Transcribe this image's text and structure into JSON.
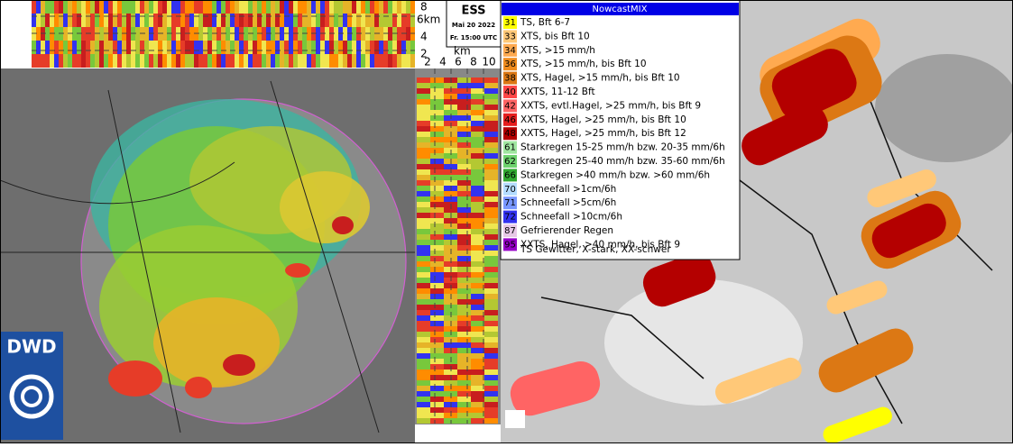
{
  "header": {
    "station": "ESS",
    "date": "Mai 20 2022",
    "time": "Fr. 15:00 UTC"
  },
  "height_axis": {
    "labels": [
      "8",
      "6km",
      "4",
      "2"
    ]
  },
  "range_axis": {
    "labels": [
      "2",
      "4",
      "6",
      "8",
      "10"
    ],
    "unit": "km"
  },
  "legend": {
    "title": "NowcastMIX",
    "entries": [
      {
        "code": "31",
        "label": "TS, Bft 6-7",
        "color": "#ffff00"
      },
      {
        "code": "33",
        "label": "XTS, bis Bft 10",
        "color": "#ffc878"
      },
      {
        "code": "34",
        "label": "XTS, >15 mm/h",
        "color": "#ffaa50"
      },
      {
        "code": "36",
        "label": "XTS, >15 mm/h, bis Bft 10",
        "color": "#f08c1e"
      },
      {
        "code": "38",
        "label": "XTS, Hagel, >15 mm/h, bis Bft 10",
        "color": "#dc7814"
      },
      {
        "code": "40",
        "label": "XXTS, 11-12 Bft",
        "color": "#ff4646"
      },
      {
        "code": "42",
        "label": "XXTS, evtl.Hagel, >25 mm/h, bis Bft 9",
        "color": "#ff6464"
      },
      {
        "code": "46",
        "label": "XXTS, Hagel, >25 mm/h, bis Bft 10",
        "color": "#e61e1e"
      },
      {
        "code": "48",
        "label": "XXTS, Hagel, >25 mm/h, bis Bft 12",
        "color": "#b40000"
      },
      {
        "code": "61",
        "label": "Starkregen 15-25 mm/h bzw. 20-35 mm/6h",
        "color": "#a0e6a0"
      },
      {
        "code": "62",
        "label": "Starkregen 25-40 mm/h bzw. 35-60 mm/6h",
        "color": "#6ed26e"
      },
      {
        "code": "66",
        "label": "Starkregen >40 mm/h bzw. >60 mm/6h",
        "color": "#32aa32"
      },
      {
        "code": "70",
        "label": "Schneefall >1cm/6h",
        "color": "#b4dcff"
      },
      {
        "code": "71",
        "label": "Schneefall >5cm/6h",
        "color": "#7896ff"
      },
      {
        "code": "72",
        "label": "Schneefall >10cm/6h",
        "color": "#3232f0"
      },
      {
        "code": "87",
        "label": "Gefrierender Regen",
        "color": "#e6c8e6"
      },
      {
        "code": "95",
        "label": "XXTS, Hagel, >40 mm/h, bis Bft 9",
        "color": "#9600c8"
      }
    ],
    "footnote": "TS Gewitter,  X-stark, XX-schwer"
  },
  "logo": {
    "text": "DWD"
  }
}
